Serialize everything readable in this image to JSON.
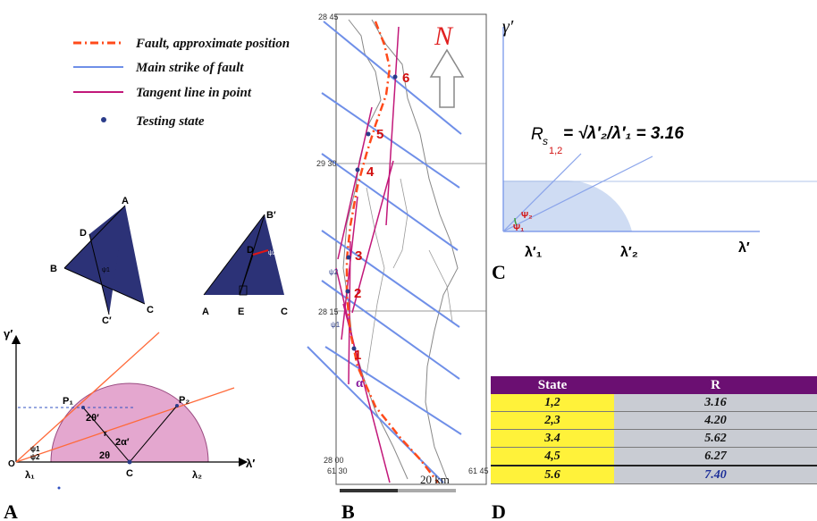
{
  "legend": {
    "fault": "Fault, approximate position",
    "strike": "Main strike of fault",
    "tangent": "Tangent line in point",
    "testing": "Testing state"
  },
  "colors": {
    "fault": "#ff4a1a",
    "strike": "#6f8fe8",
    "tangent": "#c2187a",
    "testing": "#2a3c8a",
    "triangle": "#2c3277",
    "mohr_fill": "#e4a7cf",
    "c_fill": "#cfdcf3",
    "table_header": "#6b0f72",
    "state_cell": "#fff23a",
    "r_cell": "#c9ccd3"
  },
  "panelA": {
    "tag": "A",
    "y_axis": "γ′",
    "x_axis": "λ′",
    "origin": "O",
    "lambda1": "λ₁",
    "lambda2": "λ₂",
    "p1": "P₁",
    "p2": "P₂",
    "center": "C",
    "two_theta": "2θ",
    "two_theta_prime": "2θ′",
    "two_alpha_prime": "2α′",
    "r": "r",
    "psi1": "ψ1",
    "psi2": "ψ2",
    "tri1": {
      "a": "A",
      "b": "B",
      "c": "C",
      "c_prime": "C′",
      "d": "D",
      "psi": "ψ1"
    },
    "tri2": {
      "a": "A",
      "b_prime": "B′",
      "c": "C",
      "d": "D",
      "e": "E",
      "psi": "ψ2"
    }
  },
  "panelB": {
    "tag": "B",
    "north": "N",
    "lat_top": "28 45",
    "lat_mid": "29 30",
    "lat_low": "28 15",
    "lat_bottom": "28 00",
    "lon_left": "61 30",
    "lon_right": "61 45",
    "scale": "20 km",
    "points": [
      "1",
      "2",
      "3",
      "4",
      "5",
      "6"
    ],
    "alpha": "α",
    "psi1": "ψ1",
    "psi2": "ψ2"
  },
  "panelC": {
    "tag": "C",
    "y_axis": "γ′",
    "x_axis": "λ′",
    "lambda1": "λ′₁",
    "lambda2": "λ′₂",
    "psi1": "Ψ₁",
    "psi2": "Ψ₂",
    "formula_lhs": "R",
    "formula_sub1": "s",
    "formula_sub2": "1,2",
    "formula_rhs": "= √λ′₂/λ′₁ = 3.16"
  },
  "panelD": {
    "tag": "D",
    "headers": [
      "State",
      "R"
    ],
    "rows": [
      {
        "state": "1,2",
        "r": "3.16"
      },
      {
        "state": "2,3",
        "r": "4.20"
      },
      {
        "state": "3.4",
        "r": "5.62"
      },
      {
        "state": "4,5",
        "r": "6.27"
      },
      {
        "state": "5.6",
        "r": "7.40"
      }
    ]
  }
}
